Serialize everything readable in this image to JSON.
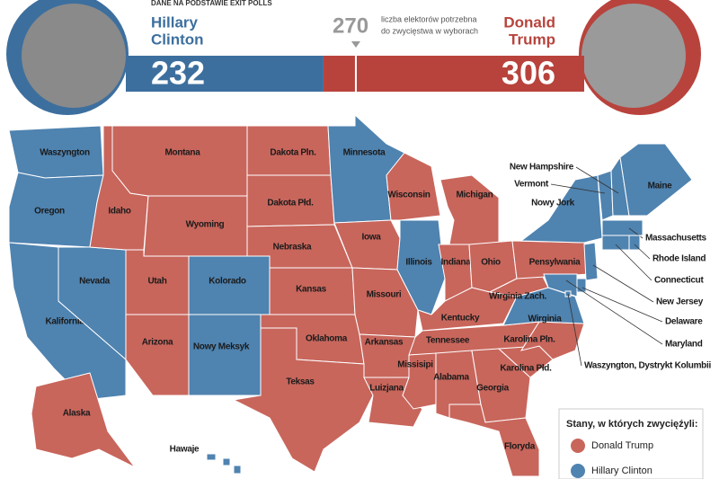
{
  "header": {
    "source": "DANE NA PODSTAWIE EXIT POLLS"
  },
  "electoral": {
    "candidates": [
      {
        "name_lines": [
          "Hillary",
          "Clinton"
        ],
        "votes": 232,
        "color": "#3d6f9e"
      },
      {
        "name_lines": [
          "Donald",
          "Trump"
        ],
        "votes": 306,
        "color": "#b8433c"
      }
    ],
    "threshold": {
      "value": 270,
      "note_lines": [
        "liczba elektorów potrzebna",
        "do zwycięstwa w wyborach"
      ]
    }
  },
  "legend": {
    "title": "Stany, w których zwycięźyli:",
    "items": [
      {
        "label": "Donald Trump",
        "color": "#c8665c"
      },
      {
        "label": "Hillary Clinton",
        "color": "#4f83b0"
      }
    ]
  },
  "states": [
    {
      "label": "Waszyngton",
      "winner": 1
    },
    {
      "label": "Oregon",
      "winner": 1
    },
    {
      "label": "Kalifornia",
      "winner": 1
    },
    {
      "label": "Nevada",
      "winner": 1
    },
    {
      "label": "Idaho",
      "winner": 0
    },
    {
      "label": "Montana",
      "winner": 0
    },
    {
      "label": "Wyoming",
      "winner": 0
    },
    {
      "label": "Utah",
      "winner": 0
    },
    {
      "label": "Kolorado",
      "winner": 1
    },
    {
      "label": "Arizona",
      "winner": 0
    },
    {
      "label": "Nowy Meksyk",
      "winner": 1
    },
    {
      "label": "Dakota Pln.",
      "winner": 0
    },
    {
      "label": "Dakota Płd.",
      "winner": 0
    },
    {
      "label": "Nebraska",
      "winner": 0
    },
    {
      "label": "Kansas",
      "winner": 0
    },
    {
      "label": "Oklahoma",
      "winner": 0
    },
    {
      "label": "Teksas",
      "winner": 0
    },
    {
      "label": "Minnesota",
      "winner": 1
    },
    {
      "label": "Iowa",
      "winner": 0
    },
    {
      "label": "Missouri",
      "winner": 0
    },
    {
      "label": "Arkansas",
      "winner": 0
    },
    {
      "label": "Luizjana",
      "winner": 0
    },
    {
      "label": "Wisconsin",
      "winner": 0
    },
    {
      "label": "Illinois",
      "winner": 1
    },
    {
      "label": "Michigan",
      "winner": 0
    },
    {
      "label": "Indiana",
      "winner": 0
    },
    {
      "label": "Ohio",
      "winner": 0
    },
    {
      "label": "Kentucky",
      "winner": 0
    },
    {
      "label": "Tennessee",
      "winner": 0
    },
    {
      "label": "Missisipi",
      "winner": 0
    },
    {
      "label": "Alabama",
      "winner": 0
    },
    {
      "label": "Georgia",
      "winner": 0
    },
    {
      "label": "Floryda",
      "winner": 0
    },
    {
      "label": "Karolina Płd.",
      "winner": 0
    },
    {
      "label": "Karolina Pln.",
      "winner": 0
    },
    {
      "label": "Wirginia",
      "winner": 1
    },
    {
      "label": "Wirginia Zach.",
      "winner": 0
    },
    {
      "label": "Pensylwania",
      "winner": 0
    },
    {
      "label": "Nowy Jork",
      "winner": 1
    },
    {
      "label": "Vermont",
      "winner": 1
    },
    {
      "label": "New Hampshire",
      "winner": 1
    },
    {
      "label": "Maine",
      "winner": 1
    },
    {
      "label": "Massachusetts",
      "winner": 1
    },
    {
      "label": "Connecticut",
      "winner": 1
    },
    {
      "label": "Rhode Island",
      "winner": 1
    },
    {
      "label": "New Jersey",
      "winner": 1
    },
    {
      "label": "Delaware",
      "winner": 1
    },
    {
      "label": "Maryland",
      "winner": 1
    },
    {
      "label": "Waszyngton, Dystrykt Kolumbii",
      "winner": 1
    },
    {
      "label": "Alaska",
      "winner": 0
    },
    {
      "label": "Hawaje",
      "winner": 1
    }
  ]
}
